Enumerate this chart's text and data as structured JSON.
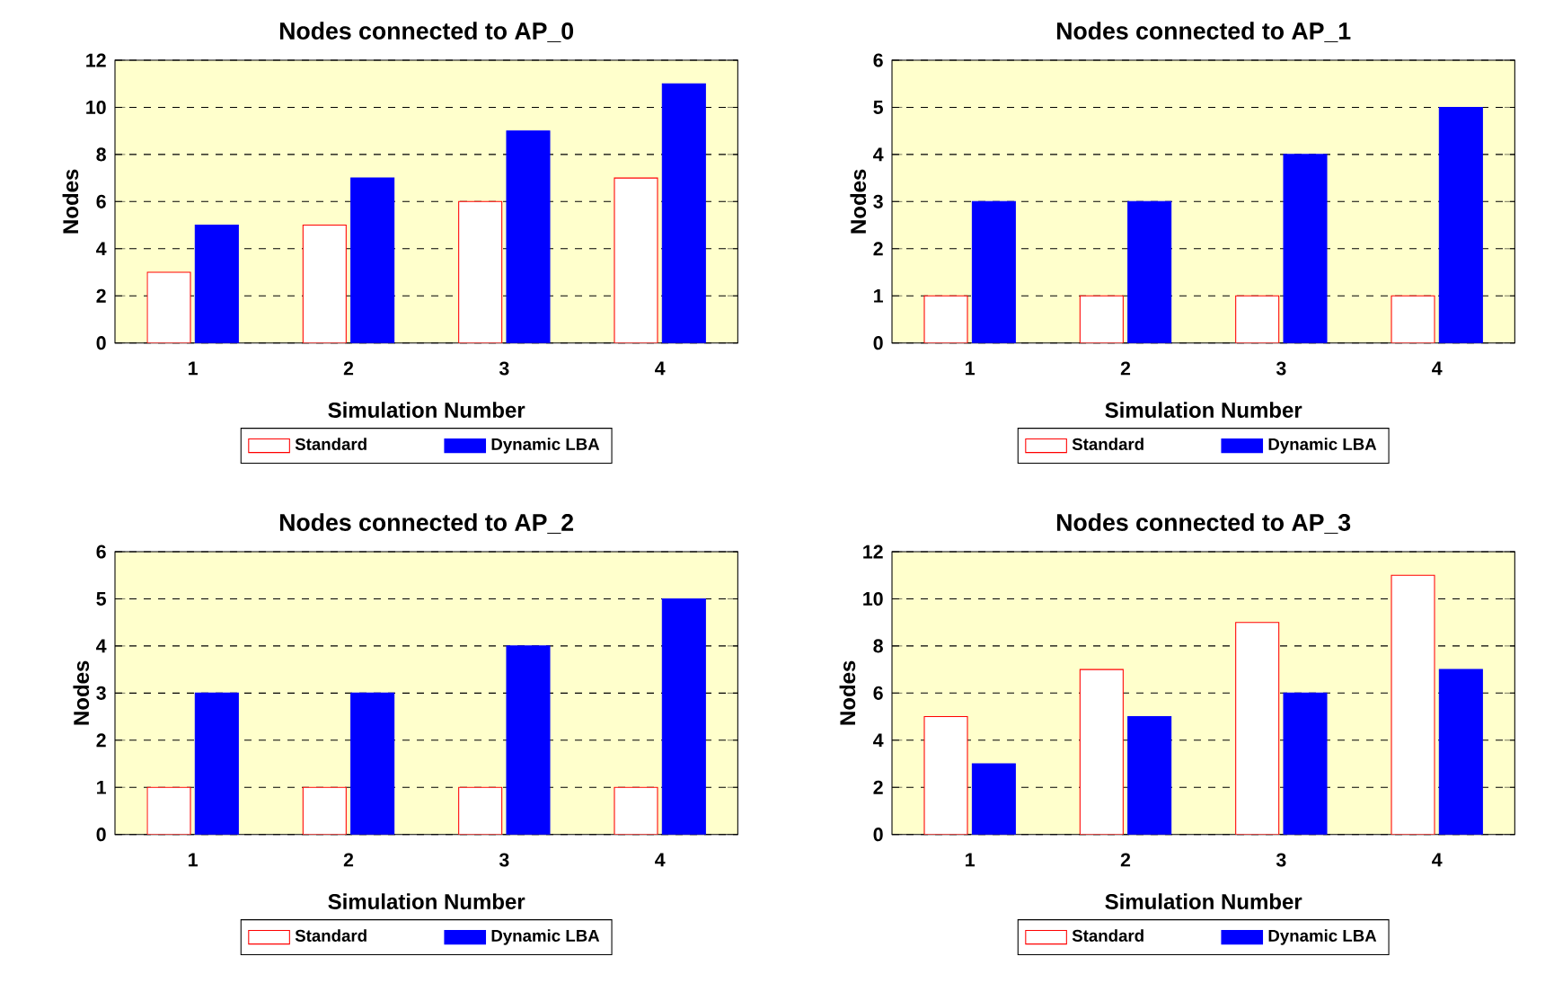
{
  "chart_data": [
    {
      "type": "bar",
      "title": "Nodes connected to AP_0",
      "xlabel": "Simulation Number",
      "ylabel": "Nodes",
      "categories": [
        "1",
        "2",
        "3",
        "4"
      ],
      "series": [
        {
          "name": "Standard",
          "color": "#ffffff",
          "values": [
            3,
            5,
            6,
            7
          ]
        },
        {
          "name": "Dynamic LBA",
          "color": "#0000ff",
          "values": [
            5,
            7,
            9,
            11
          ]
        }
      ],
      "ylim": [
        0,
        12
      ],
      "yticks": [
        0,
        2,
        4,
        6,
        8,
        10,
        12
      ],
      "grid": "y",
      "legend": "bottom"
    },
    {
      "type": "bar",
      "title": "Nodes connected to AP_1",
      "xlabel": "Simulation Number",
      "ylabel": "Nodes",
      "categories": [
        "1",
        "2",
        "3",
        "4"
      ],
      "series": [
        {
          "name": "Standard",
          "color": "#ffffff",
          "values": [
            1,
            1,
            1,
            1
          ]
        },
        {
          "name": "Dynamic LBA",
          "color": "#0000ff",
          "values": [
            3,
            3,
            4,
            5
          ]
        }
      ],
      "ylim": [
        0,
        6
      ],
      "yticks": [
        0,
        1,
        2,
        3,
        4,
        5,
        6
      ],
      "grid": "y",
      "legend": "bottom"
    },
    {
      "type": "bar",
      "title": "Nodes connected to AP_2",
      "xlabel": "Simulation Number",
      "ylabel": "Nodes",
      "categories": [
        "1",
        "2",
        "3",
        "4"
      ],
      "series": [
        {
          "name": "Standard",
          "color": "#ffffff",
          "values": [
            1,
            1,
            1,
            1
          ]
        },
        {
          "name": "Dynamic LBA",
          "color": "#0000ff",
          "values": [
            3,
            3,
            4,
            5
          ]
        }
      ],
      "ylim": [
        0,
        6
      ],
      "yticks": [
        0,
        1,
        2,
        3,
        4,
        5,
        6
      ],
      "grid": "y",
      "legend": "bottom"
    },
    {
      "type": "bar",
      "title": "Nodes connected to AP_3",
      "xlabel": "Simulation Number",
      "ylabel": "Nodes",
      "categories": [
        "1",
        "2",
        "3",
        "4"
      ],
      "series": [
        {
          "name": "Standard",
          "color": "#ffffff",
          "values": [
            5,
            7,
            9,
            11
          ]
        },
        {
          "name": "Dynamic LBA",
          "color": "#0000ff",
          "values": [
            3,
            5,
            6,
            7
          ]
        }
      ],
      "ylim": [
        0,
        12
      ],
      "yticks": [
        0,
        2,
        4,
        6,
        8,
        10,
        12
      ],
      "grid": "y",
      "legend": "bottom"
    }
  ]
}
